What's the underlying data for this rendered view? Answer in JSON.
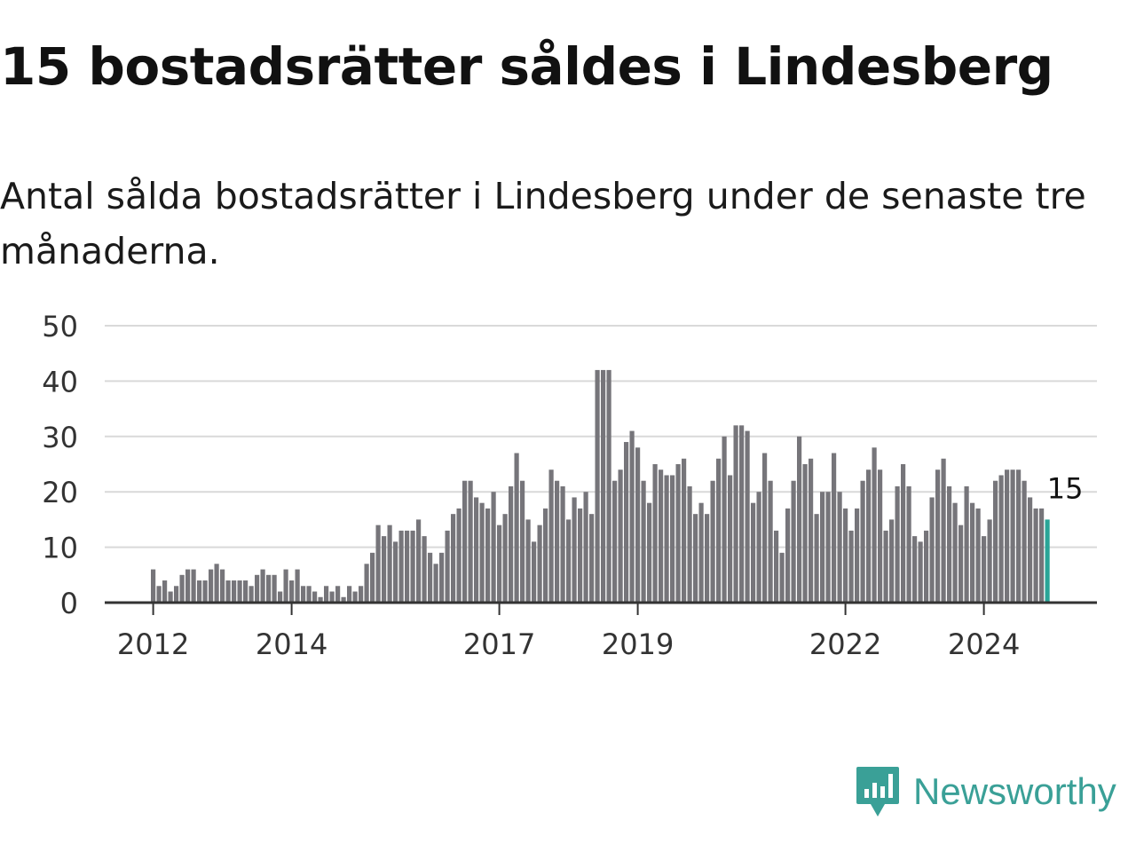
{
  "header": {
    "title": "15 bostadsrätter såldes i Lindesberg",
    "subtitle": "Antal sålda bostadsrätter i Lindesberg under de senaste tre månaderna."
  },
  "brand": {
    "name": "Newsworthy",
    "icon": "newsworthy-logo-icon",
    "color": "#3aa097"
  },
  "colors": {
    "bar": "#76757a",
    "highlight": "#2aa597",
    "grid": "#d9d9d9",
    "axis": "#333333"
  },
  "chart_data": {
    "type": "bar",
    "title": "",
    "xlabel": "",
    "ylabel": "",
    "x_unit": "month",
    "x_start": "2012-01",
    "ylim": [
      0,
      50
    ],
    "yticks": [
      0,
      10,
      20,
      30,
      40,
      50
    ],
    "xticks": [
      "2012",
      "2014",
      "2017",
      "2019",
      "2022",
      "2024"
    ],
    "grid": true,
    "legend": "none",
    "highlight_last": true,
    "last_value_label": "15",
    "values": [
      6,
      3,
      4,
      2,
      3,
      5,
      6,
      6,
      4,
      4,
      6,
      7,
      6,
      4,
      4,
      4,
      4,
      3,
      5,
      6,
      5,
      5,
      2,
      6,
      4,
      6,
      3,
      3,
      2,
      1,
      3,
      2,
      3,
      1,
      3,
      2,
      3,
      7,
      9,
      14,
      12,
      14,
      11,
      13,
      13,
      13,
      15,
      12,
      9,
      7,
      9,
      13,
      16,
      17,
      22,
      22,
      19,
      18,
      17,
      20,
      14,
      16,
      21,
      27,
      22,
      15,
      11,
      14,
      17,
      24,
      22,
      21,
      15,
      19,
      17,
      20,
      16,
      42,
      42,
      42,
      22,
      24,
      29,
      31,
      28,
      22,
      18,
      25,
      24,
      23,
      23,
      25,
      26,
      21,
      16,
      18,
      16,
      22,
      26,
      30,
      23,
      32,
      32,
      31,
      18,
      20,
      27,
      22,
      13,
      9,
      17,
      22,
      30,
      25,
      26,
      16,
      20,
      20,
      27,
      20,
      17,
      13,
      17,
      22,
      24,
      28,
      24,
      13,
      15,
      21,
      25,
      21,
      12,
      11,
      13,
      19,
      24,
      26,
      21,
      18,
      14,
      21,
      18,
      17,
      12,
      15,
      22,
      23,
      24,
      24,
      24,
      22,
      19,
      17,
      17,
      15
    ]
  }
}
